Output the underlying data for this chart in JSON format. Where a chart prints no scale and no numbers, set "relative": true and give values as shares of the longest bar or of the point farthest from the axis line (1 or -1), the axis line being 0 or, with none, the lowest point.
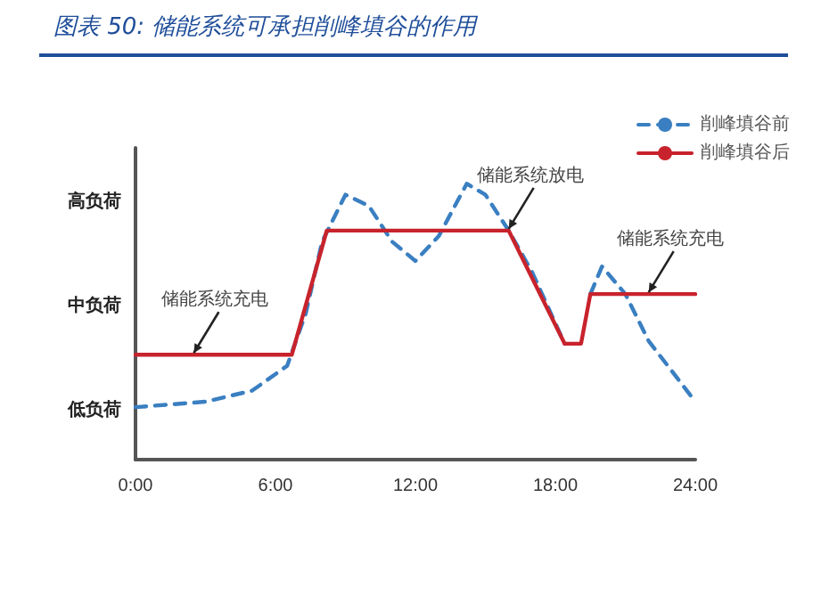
{
  "chart_data": {
    "type": "line",
    "title": "图表 50:  储能系统可承担削峰填谷的作用",
    "relative": true,
    "series": [
      {
        "name": "削峰填谷前",
        "color": "#3a7fc1",
        "line_style": "dashed",
        "x": [
          0,
          3,
          5,
          6.5,
          7.3,
          8,
          9,
          10,
          11,
          12,
          13,
          14.2,
          15,
          16,
          17,
          18.4,
          19.1,
          19.5,
          20,
          21,
          22,
          23,
          24
        ],
        "values": [
          0.19,
          0.21,
          0.25,
          0.34,
          0.53,
          0.79,
          0.96,
          0.92,
          0.79,
          0.72,
          0.81,
          1,
          0.96,
          0.83,
          0.68,
          0.42,
          null,
          0.6,
          0.7,
          0.6,
          0.43,
          0.32,
          0.21
        ]
      },
      {
        "name": "削峰填谷后",
        "color": "#c8232c",
        "line_style": "solid",
        "x": [
          0,
          6.7,
          8.2,
          16,
          18.4,
          19.1,
          19.5,
          24
        ],
        "values": [
          0.38,
          0.38,
          0.83,
          0.83,
          0.42,
          0.42,
          0.6,
          0.6
        ]
      }
    ],
    "xlim": [
      0,
      24
    ],
    "xticks": [
      {
        "value": 0,
        "label": "0:00"
      },
      {
        "value": 6,
        "label": "6:00"
      },
      {
        "value": 12,
        "label": "12:00"
      },
      {
        "value": 18,
        "label": "18:00"
      },
      {
        "value": 24,
        "label": "24:00"
      }
    ],
    "annotations": [
      "高负荷",
      "中负荷",
      "低负荷",
      {
        "text": "储能系统充电",
        "x": 2.5,
        "y": 0.38
      },
      {
        "text": "储能系统放电",
        "x": 16,
        "y": 0.83
      },
      {
        "text": "储能系统充电",
        "x": 22,
        "y": 0.6
      }
    ],
    "legend": "top right",
    "grid": false,
    "marker": "none"
  }
}
